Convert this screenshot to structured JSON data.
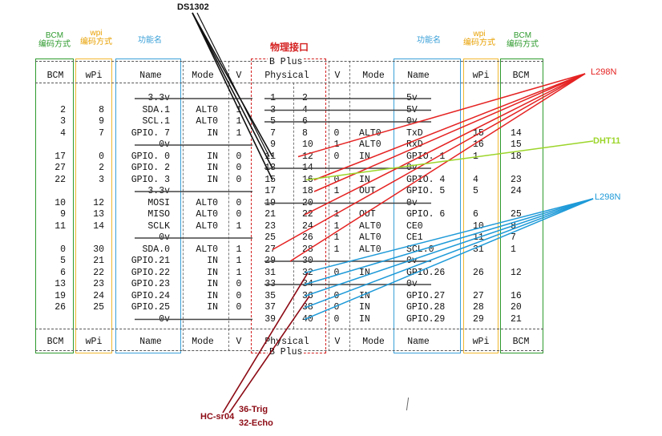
{
  "column_headers": {
    "bcm_left": [
      "BCM",
      "编码方式"
    ],
    "wpi_left": [
      "wpi",
      "编码方式"
    ],
    "func_left": [
      "功能名"
    ],
    "physical": [
      "物理接口"
    ],
    "func_right": [
      "功能名"
    ],
    "wpi_right": [
      "wpi",
      "编码方式"
    ],
    "bcm_right": [
      "BCM",
      "编码方式"
    ]
  },
  "table": {
    "banner_top": "B Plus",
    "banner_bottom": "B Plus",
    "headers": [
      "BCM",
      "wPi",
      "Name",
      "Mode",
      "V",
      "Physical",
      "V",
      "Mode",
      "Name",
      "wPi",
      "BCM"
    ],
    "rows": [
      [
        "",
        "",
        "3.3v",
        "",
        "",
        "1",
        "2",
        "",
        "",
        "5v",
        "",
        ""
      ],
      [
        "2",
        "8",
        "SDA.1",
        "ALT0",
        "1",
        "3",
        "4",
        "",
        "",
        "5V",
        "",
        ""
      ],
      [
        "3",
        "9",
        "SCL.1",
        "ALT0",
        "1",
        "5",
        "6",
        "",
        "",
        "0v",
        "",
        ""
      ],
      [
        "4",
        "7",
        "GPIO. 7",
        "IN",
        "1",
        "7",
        "8",
        "0",
        "ALT0",
        "TxD",
        "15",
        "14"
      ],
      [
        "",
        "",
        "0v",
        "",
        "",
        "9",
        "10",
        "1",
        "ALT0",
        "RxD",
        "16",
        "15"
      ],
      [
        "17",
        "0",
        "GPIO. 0",
        "IN",
        "0",
        "11",
        "12",
        "0",
        "IN",
        "GPIO. 1",
        "1",
        "18"
      ],
      [
        "27",
        "2",
        "GPIO. 2",
        "IN",
        "0",
        "13",
        "14",
        "",
        "",
        "0v",
        "",
        ""
      ],
      [
        "22",
        "3",
        "GPIO. 3",
        "IN",
        "0",
        "15",
        "16",
        "0",
        "IN",
        "GPIO. 4",
        "4",
        "23"
      ],
      [
        "",
        "",
        "3.3v",
        "",
        "",
        "17",
        "18",
        "1",
        "OUT",
        "GPIO. 5",
        "5",
        "24"
      ],
      [
        "10",
        "12",
        "MOSI",
        "ALT0",
        "0",
        "19",
        "20",
        "",
        "",
        "0v",
        "",
        ""
      ],
      [
        "9",
        "13",
        "MISO",
        "ALT0",
        "0",
        "21",
        "22",
        "1",
        "OUT",
        "GPIO. 6",
        "6",
        "25"
      ],
      [
        "11",
        "14",
        "SCLK",
        "ALT0",
        "1",
        "23",
        "24",
        "1",
        "ALT0",
        "CE0",
        "10",
        "8"
      ],
      [
        "",
        "",
        "0v",
        "",
        "",
        "25",
        "26",
        "1",
        "ALT0",
        "CE1",
        "11",
        "7"
      ],
      [
        "0",
        "30",
        "SDA.0",
        "ALT0",
        "1",
        "27",
        "28",
        "1",
        "ALT0",
        "SCL.0",
        "31",
        "1"
      ],
      [
        "5",
        "21",
        "GPIO.21",
        "IN",
        "1",
        "29",
        "30",
        "",
        "",
        "0v",
        "",
        ""
      ],
      [
        "6",
        "22",
        "GPIO.22",
        "IN",
        "1",
        "31",
        "32",
        "0",
        "IN",
        "GPIO.26",
        "26",
        "12"
      ],
      [
        "13",
        "23",
        "GPIO.23",
        "IN",
        "0",
        "33",
        "34",
        "",
        "",
        "0v",
        "",
        ""
      ],
      [
        "19",
        "24",
        "GPIO.24",
        "IN",
        "0",
        "35",
        "36",
        "0",
        "IN",
        "GPIO.27",
        "27",
        "16"
      ],
      [
        "26",
        "25",
        "GPIO.25",
        "IN",
        "0",
        "37",
        "38",
        "0",
        "IN",
        "GPIO.28",
        "28",
        "20"
      ],
      [
        "",
        "",
        "0v",
        "",
        "",
        "39",
        "40",
        "0",
        "IN",
        "GPIO.29",
        "29",
        "21"
      ]
    ]
  },
  "modules": {
    "ds1302": "DS1302",
    "l298n_top": "L298N",
    "dht11": "DHT11",
    "l298n_bottom": "L298N",
    "hcsr04": "HC-sr04",
    "trig": "36-Trig",
    "echo": "32-Echo"
  },
  "colors": {
    "bcm": "#2e9a2e",
    "wpi": "#e8a000",
    "func": "#3aa0d8",
    "physical": "#d42020",
    "ds1302_line": "#111111",
    "l298n_top_line": "#e52222",
    "dht11_line": "#9cd52a",
    "l298n_bottom_line": "#1e9ad8",
    "hcsr04_line": "#8c0a14",
    "strike": "#444444"
  }
}
